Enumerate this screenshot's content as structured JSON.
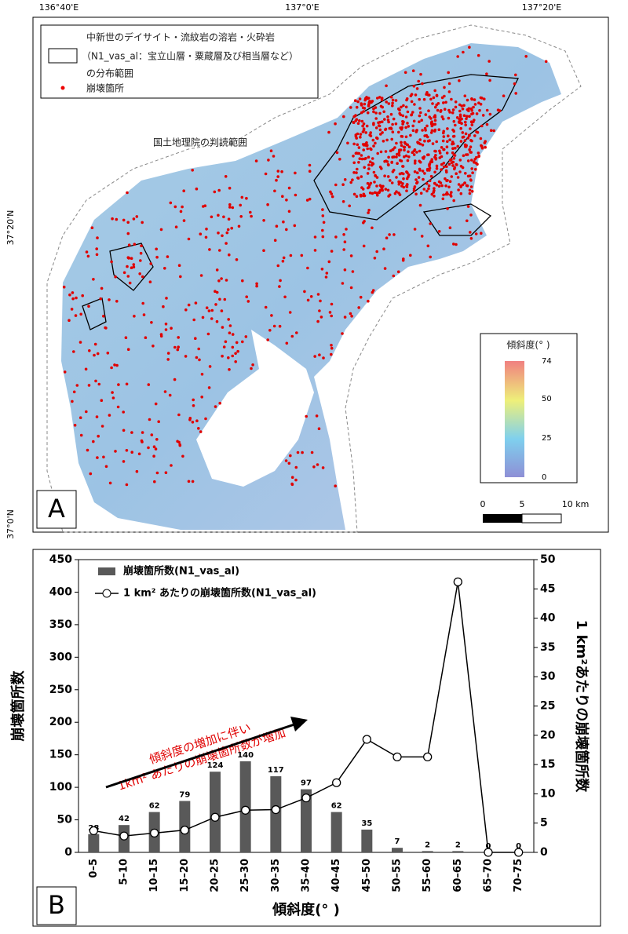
{
  "map": {
    "lon_labels": [
      "136°40'E",
      "137°0'E",
      "137°20'E"
    ],
    "lat_labels": [
      "37°20'N",
      "37°0'N"
    ],
    "legend": [
      "中新世のデイサイト・流紋岩の溶岩・火砕岩",
      "（N1_vas_al：宝立山層・粟蔵層及び相当層など）",
      "の分布範囲",
      "崩壊箇所"
    ],
    "annotation": "国土地理院の判読範囲",
    "panel_label": "A",
    "colorbar": {
      "title": "傾斜度(° )",
      "lim": [
        0,
        74
      ],
      "ticks": [
        0,
        25,
        50,
        74
      ]
    },
    "scale": {
      "labels": [
        "0",
        "5",
        "10 km"
      ]
    }
  },
  "chart_data": {
    "type": "bar",
    "panel_label": "B",
    "categories": [
      "0–5",
      "5–10",
      "10–15",
      "15–20",
      "20–25",
      "25–30",
      "30–35",
      "35–40",
      "40–45",
      "45–50",
      "50–55",
      "55–60",
      "60–65",
      "65–70",
      "70–75"
    ],
    "series": [
      {
        "name": "崩壊箇所数(N1_vas_al)",
        "type": "bar",
        "color": "#595959",
        "values": [
          28,
          42,
          62,
          79,
          124,
          140,
          117,
          97,
          62,
          35,
          7,
          2,
          2,
          0,
          0
        ]
      },
      {
        "name": "1 km² あたりの崩壊箇所数(N1_vas_al)",
        "type": "line",
        "axis": "y2",
        "color": "#000000",
        "values": [
          3.7,
          2.8,
          3.3,
          3.8,
          6.0,
          7.2,
          7.3,
          9.3,
          11.9,
          19.3,
          16.3,
          16.3,
          46.2,
          0,
          0
        ]
      }
    ],
    "ylim": [
      0,
      450
    ],
    "yticks": [
      0,
      50,
      100,
      150,
      200,
      250,
      300,
      350,
      400,
      450
    ],
    "y2lim": [
      0,
      50
    ],
    "y2ticks": [
      0,
      5,
      10,
      15,
      20,
      25,
      30,
      35,
      40,
      45,
      50
    ],
    "ylabel": "崩壊箇所数",
    "y2label": "1 km²あたりの崩壊箇所数",
    "xlabel": "傾斜度(° )",
    "annotation": [
      "傾斜度の増加に伴い",
      "1km² あたりの崩壊箇所数が増加"
    ],
    "legend": "upper left"
  }
}
